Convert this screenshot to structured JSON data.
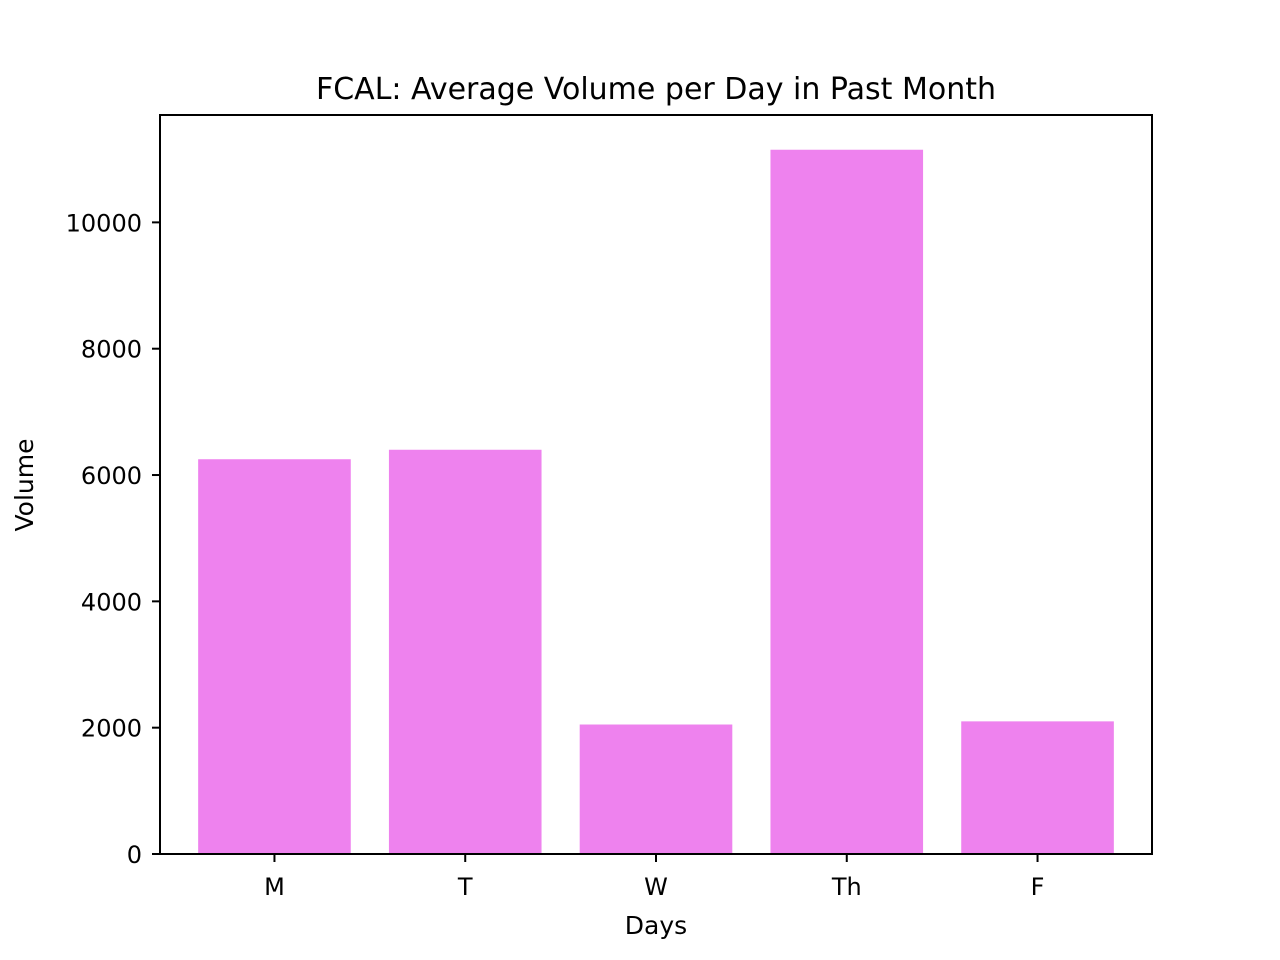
{
  "chart_data": {
    "type": "bar",
    "title": "FCAL: Average Volume per Day in Past Month",
    "xlabel": "Days",
    "ylabel": "Volume",
    "categories": [
      "M",
      "T",
      "W",
      "Th",
      "F"
    ],
    "values": [
      6250,
      6400,
      2050,
      11150,
      2100
    ],
    "ylim": [
      0,
      11700
    ],
    "yticks": [
      0,
      2000,
      4000,
      6000,
      8000,
      10000
    ],
    "bar_color": "#ee82ee",
    "grid": false,
    "legend": "none"
  }
}
